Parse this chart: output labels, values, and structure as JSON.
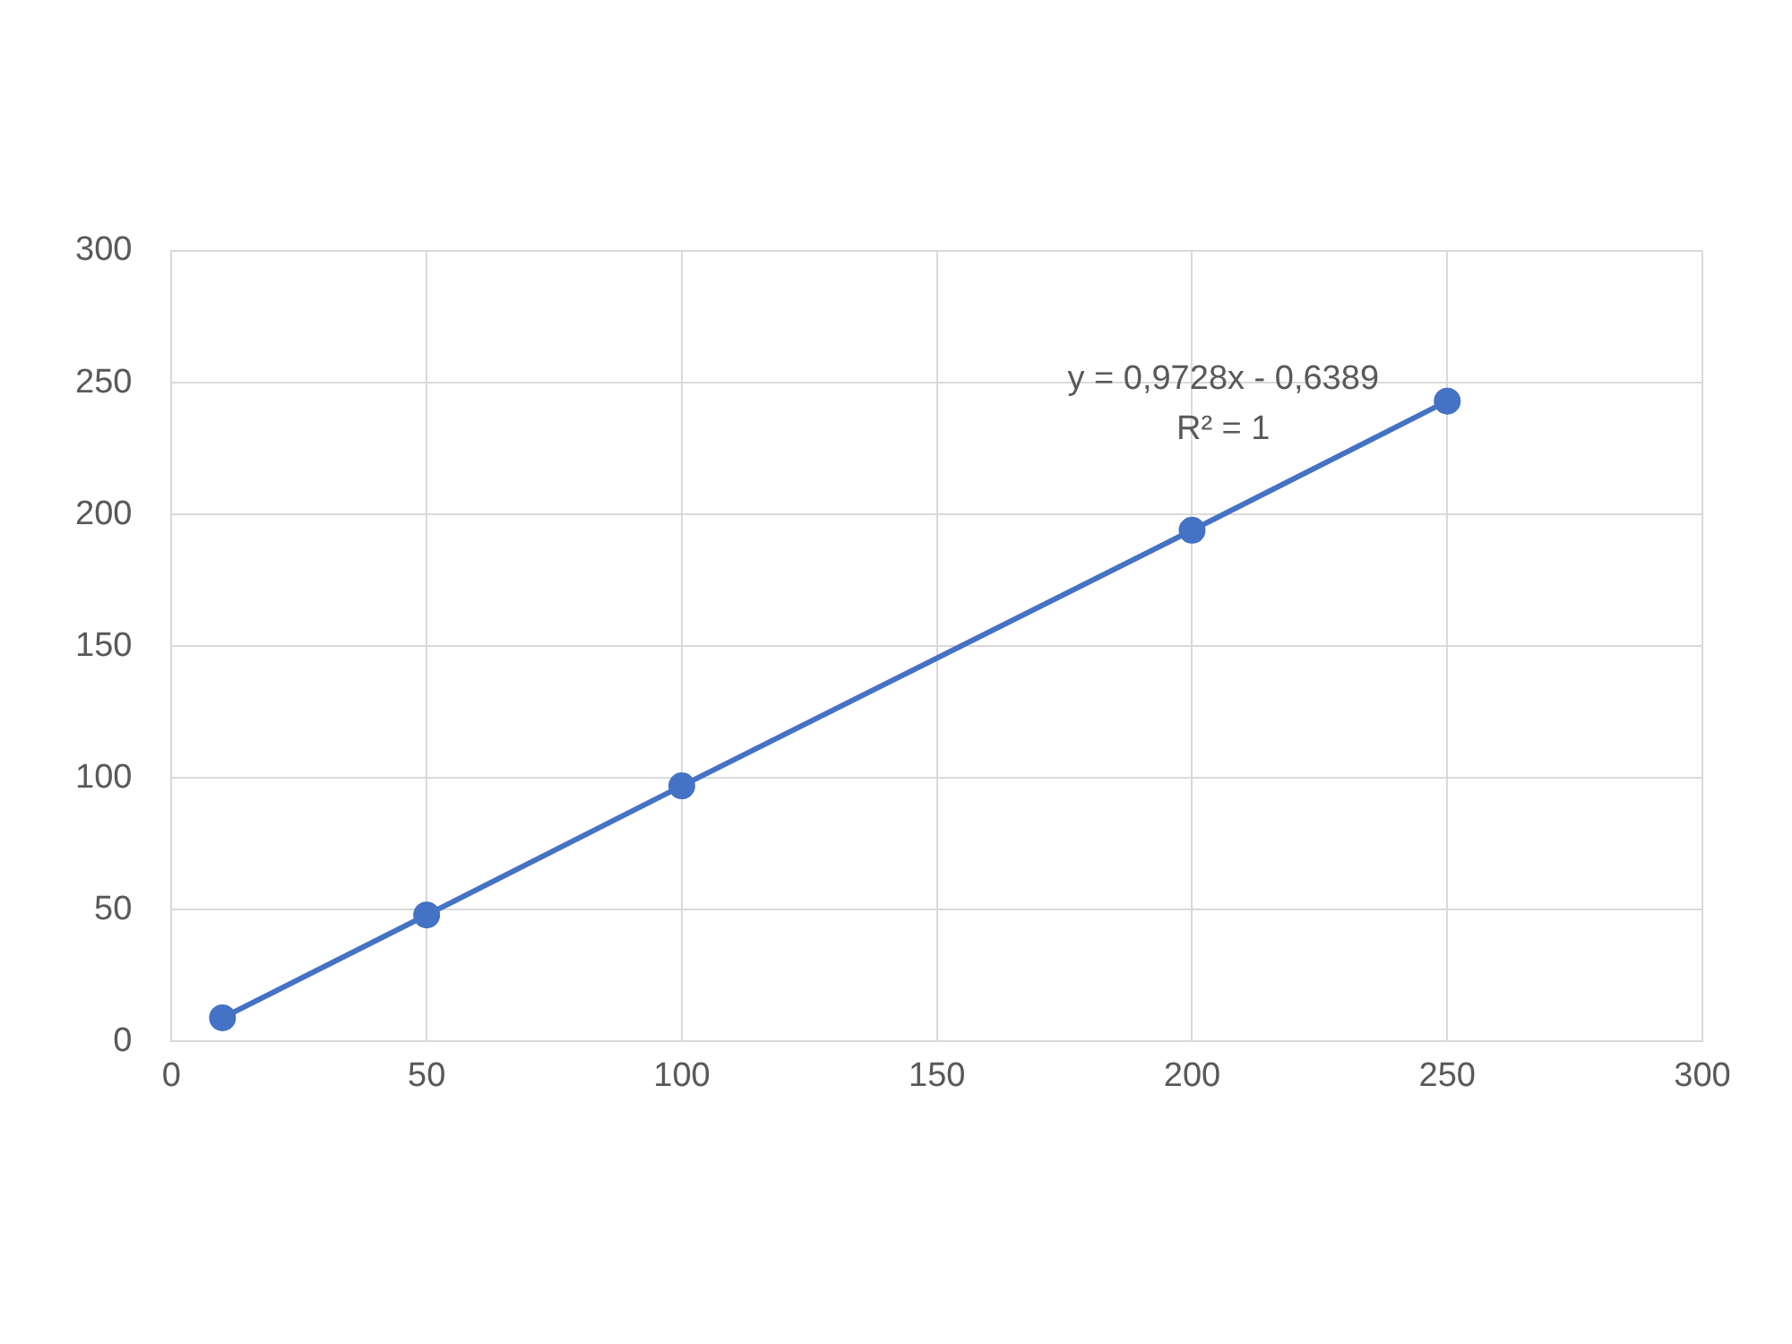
{
  "chart_data": {
    "type": "line",
    "series": [
      {
        "color": "#4472c4",
        "x": [
          10,
          50,
          100,
          200,
          250
        ],
        "values": [
          9,
          48,
          97,
          194,
          243
        ]
      }
    ],
    "xlim": [
      0,
      300
    ],
    "xticks": [
      0,
      50,
      100,
      150,
      200,
      250,
      300
    ],
    "ylim": [
      0,
      300
    ],
    "yticks": [
      0,
      50,
      100,
      150,
      200,
      250,
      300
    ],
    "grid": true,
    "legend": false,
    "marker": "circle",
    "line_style": "solid",
    "annotations": [
      "y = 0,9728x - 0,6389",
      "R² = 1"
    ]
  }
}
